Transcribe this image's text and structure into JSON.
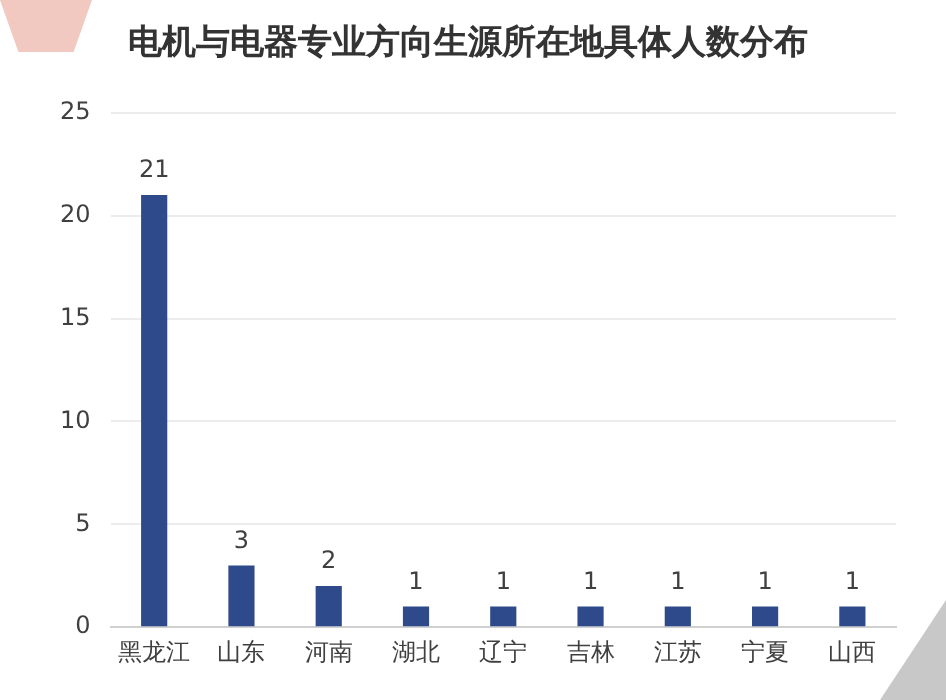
{
  "chart_data": {
    "type": "bar",
    "title": "电机与电器专业方向生源所在地具体人数分布",
    "categories": [
      "黑龙江",
      "山东",
      "河南",
      "湖北",
      "辽宁",
      "吉林",
      "江苏",
      "宁夏",
      "山西"
    ],
    "values": [
      21,
      3,
      2,
      1,
      1,
      1,
      1,
      1,
      1
    ],
    "color": "#2f4a8a",
    "ylim": [
      0,
      25
    ],
    "yticks": [
      0,
      5,
      10,
      15,
      20,
      25
    ],
    "grid": "y",
    "legend": false,
    "data_labels": true
  }
}
